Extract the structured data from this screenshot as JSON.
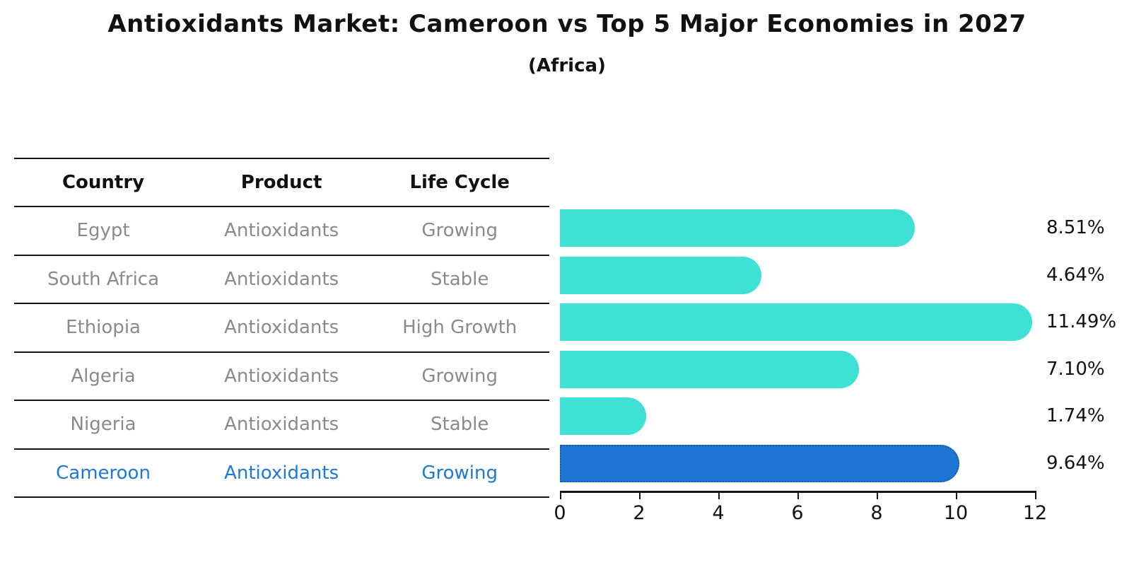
{
  "title": "Antioxidants Market: Cameroon vs Top 5 Major Economies in 2027",
  "subtitle": "(Africa)",
  "colors": {
    "bar_default": "#3fe0d6",
    "bar_highlight": "#1e76d2",
    "bar_highlight_edge": "#0e5cb8",
    "table_text": "#8a8a8a",
    "highlight_text": "#1e78d8",
    "rule_line": "#141414"
  },
  "table": {
    "headers": [
      "Country",
      "Product",
      "Life Cycle"
    ],
    "rows": [
      {
        "country": "Egypt",
        "product": "Antioxidants",
        "life_cycle": "Growing",
        "highlight": false
      },
      {
        "country": "South Africa",
        "product": "Antioxidants",
        "life_cycle": "Stable",
        "highlight": false
      },
      {
        "country": "Ethiopia",
        "product": "Antioxidants",
        "life_cycle": "High Growth",
        "highlight": false
      },
      {
        "country": "Algeria",
        "product": "Antioxidants",
        "life_cycle": "Growing",
        "highlight": false
      },
      {
        "country": "Nigeria",
        "product": "Antioxidants",
        "life_cycle": "Stable",
        "highlight": false
      },
      {
        "country": "Cameroon",
        "product": "Antioxidants",
        "life_cycle": "Growing",
        "highlight": true
      }
    ]
  },
  "chart_data": {
    "type": "bar",
    "orientation": "horizontal",
    "title": "Antioxidants Market: Cameroon vs Top 5 Major Economies in 2027 (Africa)",
    "categories": [
      "Egypt",
      "South Africa",
      "Ethiopia",
      "Algeria",
      "Nigeria",
      "Cameroon"
    ],
    "values": [
      8.51,
      4.64,
      11.49,
      7.1,
      1.74,
      9.64
    ],
    "value_labels": [
      "8.51%",
      "4.64%",
      "11.49%",
      "7.10%",
      "1.74%",
      "9.64%"
    ],
    "highlight_index": 5,
    "xlabel": "",
    "ylabel": "",
    "xlim": [
      0,
      12
    ],
    "xticks": [
      0,
      2,
      4,
      6,
      8,
      10,
      12
    ],
    "grid": false,
    "legend": false
  }
}
